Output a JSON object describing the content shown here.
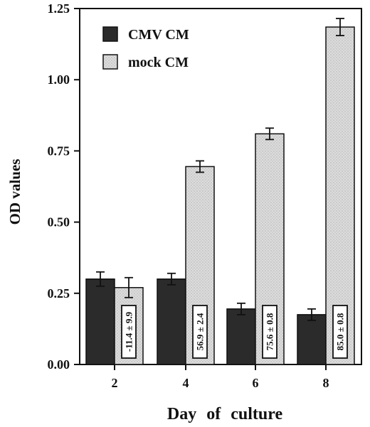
{
  "chart_data": {
    "type": "bar",
    "title": "",
    "xlabel": "Day of culture",
    "ylabel": "OD values",
    "categories": [
      "2",
      "4",
      "6",
      "8"
    ],
    "ylim": [
      0,
      1.25
    ],
    "yticks": [
      "0.00",
      "0.25",
      "0.50",
      "0.75",
      "1.00",
      "1.25"
    ],
    "series": [
      {
        "name": "CMV CM",
        "values": [
          0.3,
          0.3,
          0.195,
          0.175
        ],
        "errors": [
          0.025,
          0.02,
          0.02,
          0.02
        ],
        "color": "#2b2b2b"
      },
      {
        "name": "mock CM",
        "values": [
          0.27,
          0.695,
          0.81,
          1.185
        ],
        "errors": [
          0.035,
          0.02,
          0.02,
          0.03
        ],
        "color": "#d9d9d9"
      }
    ],
    "annotations": [
      "-11.4 ± 9.9",
      "56.9 ± 2.4",
      "75.6 ± 0.8",
      "85.0 ± 0.8"
    ],
    "legend_position": "top-left",
    "grid": false
  }
}
